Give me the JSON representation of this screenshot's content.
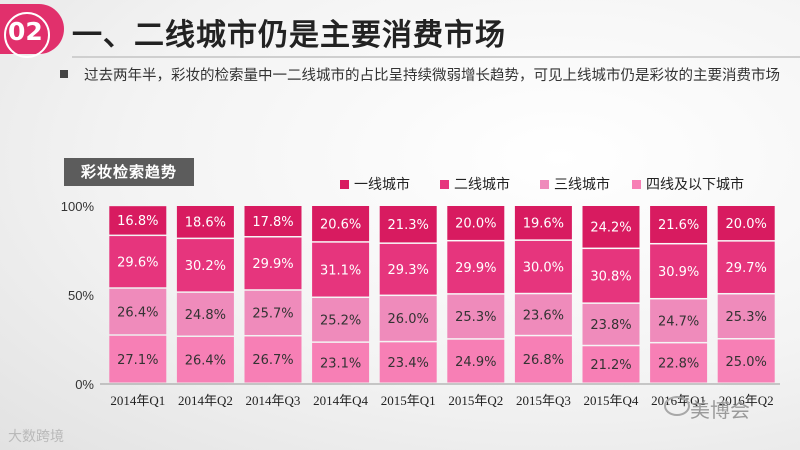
{
  "badge": {
    "number": "02"
  },
  "header": {
    "title": "一、二线城市仍是主要消费市场"
  },
  "description": "过去两年半，彩妆的检索量中一二线城市的占比呈持续微弱增长趋势，可见上线城市仍是彩妆的主要消费市场",
  "section_label": "彩妆检索趋势",
  "watermarks": {
    "left": "大数跨境",
    "right": "美博会"
  },
  "colors": {
    "accent": "#e1306c",
    "tier1": "#d81b60",
    "tier2": "#e6357d",
    "tier3": "#ef8bbb",
    "tier4": "#f77fb5"
  },
  "chart_data": {
    "type": "bar",
    "stacked": true,
    "normalized": true,
    "title": "彩妆检索趋势",
    "categories": [
      "2014年Q1",
      "2014年Q2",
      "2014年Q3",
      "2014年Q4",
      "2015年Q1",
      "2015年Q2",
      "2015年Q3",
      "2015年Q4",
      "2016年Q1",
      "2016年Q2"
    ],
    "series": [
      {
        "name": "一线城市",
        "values": [
          16.8,
          18.6,
          17.8,
          20.6,
          21.3,
          20.0,
          19.6,
          24.2,
          21.6,
          20.0
        ]
      },
      {
        "name": "二线城市",
        "values": [
          29.6,
          30.2,
          29.9,
          31.1,
          29.3,
          29.9,
          30.0,
          30.8,
          30.9,
          29.7
        ]
      },
      {
        "name": "三线城市",
        "values": [
          26.4,
          24.8,
          25.7,
          25.2,
          26.0,
          25.3,
          23.6,
          23.8,
          24.7,
          25.3
        ]
      },
      {
        "name": "四线及以下城市",
        "values": [
          27.1,
          26.4,
          26.7,
          23.1,
          23.4,
          24.9,
          26.8,
          21.2,
          22.8,
          25.0
        ]
      }
    ],
    "yticks": [
      "0%",
      "50%",
      "100%"
    ],
    "ylim": [
      0,
      100
    ],
    "legend_position": "top-right",
    "xlabel": "",
    "ylabel": ""
  }
}
